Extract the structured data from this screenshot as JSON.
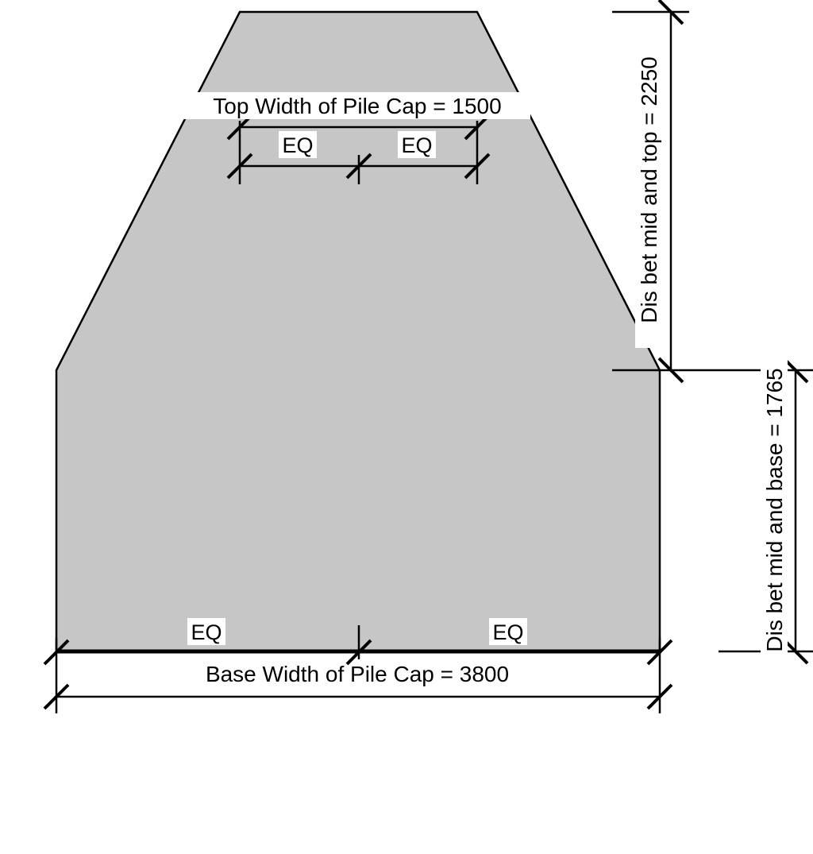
{
  "colors": {
    "section_fill": "#c6c6c6",
    "line": "#000000",
    "label_background": "#ffffff"
  },
  "labels": {
    "top_width": "Top Width of Pile Cap = 1500",
    "base_width": "Base Width of Pile Cap = 3800",
    "dis_mid_top": "Dis bet mid and top = 2250",
    "dis_mid_base": "Dis bet mid and base = 1765",
    "eq": "EQ"
  }
}
